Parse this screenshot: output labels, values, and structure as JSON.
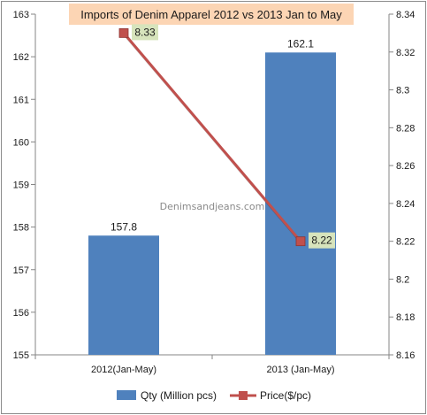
{
  "chart_data": {
    "type": "bar",
    "title": "Imports of Denim Apparel 2012  vs 2013  Jan to May",
    "categories": [
      "2012(Jan-May)",
      "2013 (Jan-May)"
    ],
    "series": [
      {
        "name": "Qty (Million pcs)",
        "chart": "bar",
        "axis": "left",
        "values": [
          157.8,
          162.1
        ],
        "labels": [
          "157.8",
          "162.1"
        ]
      },
      {
        "name": "Price($/pc)",
        "chart": "line",
        "axis": "right",
        "values": [
          8.33,
          8.22
        ],
        "labels": [
          "8.33",
          "8.22"
        ]
      }
    ],
    "y_left": {
      "ylim": [
        155,
        163
      ],
      "ticks": [
        "155",
        "156",
        "157",
        "158",
        "159",
        "160",
        "161",
        "162",
        "163"
      ]
    },
    "y_right": {
      "ylim": [
        8.16,
        8.34
      ],
      "ticks": [
        "8.16",
        "8.18",
        "8.2",
        "8.22",
        "8.24",
        "8.26",
        "8.28",
        "8.3",
        "8.32",
        "8.34"
      ]
    },
    "watermark": "Denimsandjeans.com",
    "grid": false,
    "legend_position": "bottom",
    "colors": {
      "bar": "#4f81bd",
      "line": "#c0504d",
      "title_bg": "#fcd5b4",
      "label_bg": "#d7e4bc",
      "axis": "#868686"
    }
  }
}
